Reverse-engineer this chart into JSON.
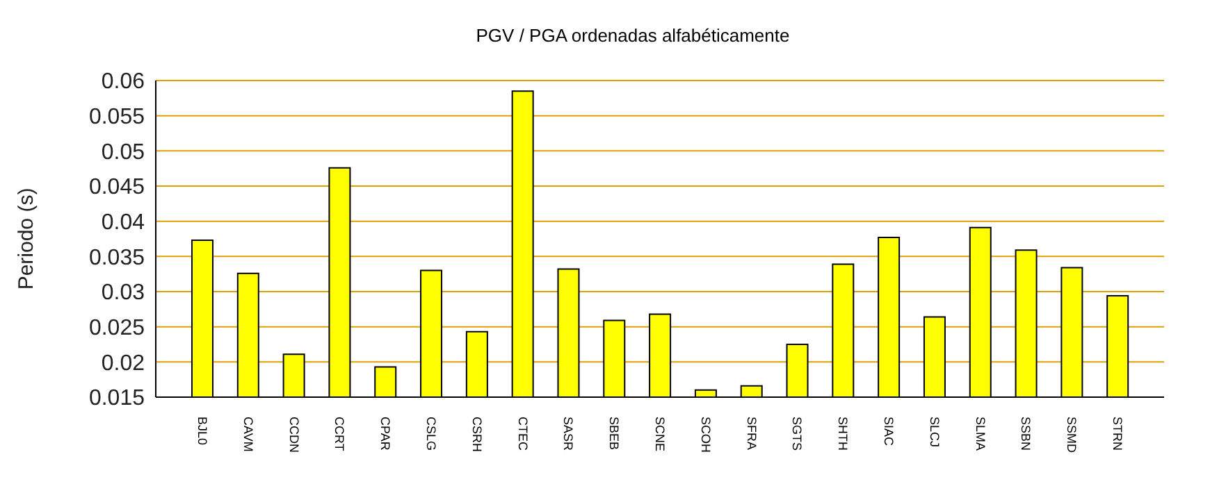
{
  "chart_data": {
    "type": "bar",
    "title": "PGV / PGA ordenadas alfabéticamente",
    "ylabel": "Periodo (s)",
    "categories": [
      "BJL0",
      "CAVM",
      "CCDN",
      "CCRT",
      "CPAR",
      "CSLG",
      "CSRH",
      "CTEC",
      "SASR",
      "SBEB",
      "SCNE",
      "SCOH",
      "SFRA",
      "SGTS",
      "SHTH",
      "SIAC",
      "SLCJ",
      "SLMA",
      "SSBN",
      "SSMD",
      "STRN"
    ],
    "values": [
      0.0373,
      0.0326,
      0.0211,
      0.0476,
      0.0193,
      0.033,
      0.0243,
      0.0585,
      0.0332,
      0.0259,
      0.0268,
      0.016,
      0.0166,
      0.0225,
      0.0339,
      0.0377,
      0.0264,
      0.0391,
      0.0359,
      0.0334,
      0.0294
    ],
    "color": "#ffff00",
    "ylim": [
      0.015,
      0.06
    ],
    "yticks": [
      0.015,
      0.02,
      0.025,
      0.03,
      0.035,
      0.04,
      0.045,
      0.05,
      0.055,
      0.06
    ],
    "grid": "y"
  }
}
